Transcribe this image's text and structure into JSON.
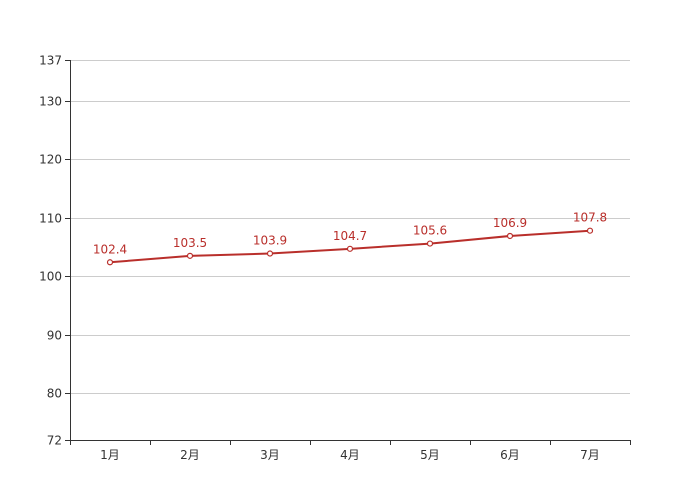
{
  "chart_data": {
    "type": "line",
    "categories": [
      "1月",
      "2月",
      "3月",
      "4月",
      "5月",
      "6月",
      "7月"
    ],
    "series": [
      {
        "values": [
          102.4,
          103.5,
          103.9,
          104.7,
          105.6,
          106.9,
          107.8
        ],
        "color": "#b92f2b"
      }
    ],
    "ylim": [
      72,
      137
    ],
    "yticks": [
      72,
      80,
      90,
      100,
      110,
      120,
      130,
      137
    ],
    "grid": true,
    "title": "",
    "xlabel": "",
    "ylabel": "",
    "data_labels": true
  }
}
